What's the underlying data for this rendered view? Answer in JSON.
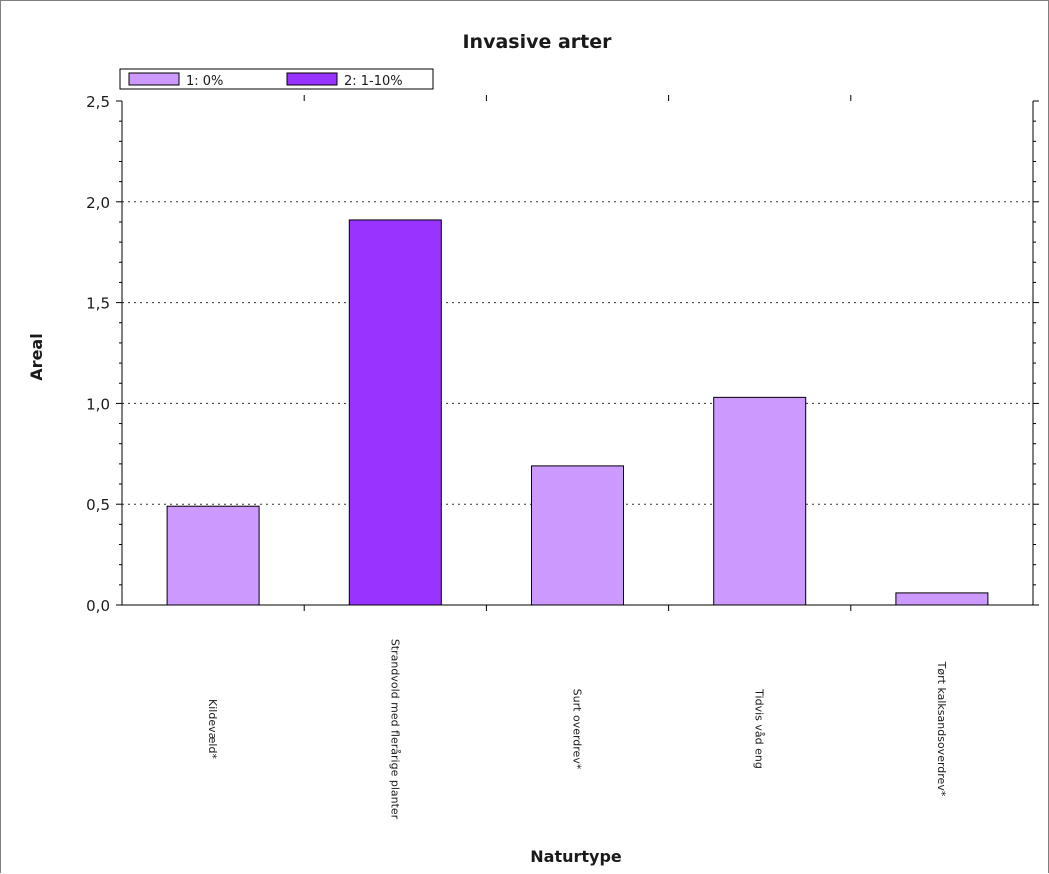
{
  "chart_data": {
    "type": "bar",
    "title": "Invasive arter",
    "xlabel": "Naturtype",
    "ylabel": "Areal",
    "ylim": [
      0,
      2.5
    ],
    "yticks": [
      "0,0",
      "0,5",
      "1,0",
      "1,5",
      "2,0",
      "2,5"
    ],
    "grid": "horizontal dotted",
    "legend_position": "top-left",
    "categories": [
      "Kildevæld*",
      "Strandvold med flerårige planter",
      "Surt overdrev*",
      "Tidvis våd eng",
      "Tørt kalksandsoverdrev*"
    ],
    "series": [
      {
        "name": "1: 0%",
        "color": "#cc99ff",
        "values": [
          0.49,
          null,
          0.69,
          1.03,
          0.06
        ]
      },
      {
        "name": "2: 1-10%",
        "color": "#9933ff",
        "values": [
          null,
          1.91,
          null,
          null,
          null
        ]
      }
    ]
  }
}
